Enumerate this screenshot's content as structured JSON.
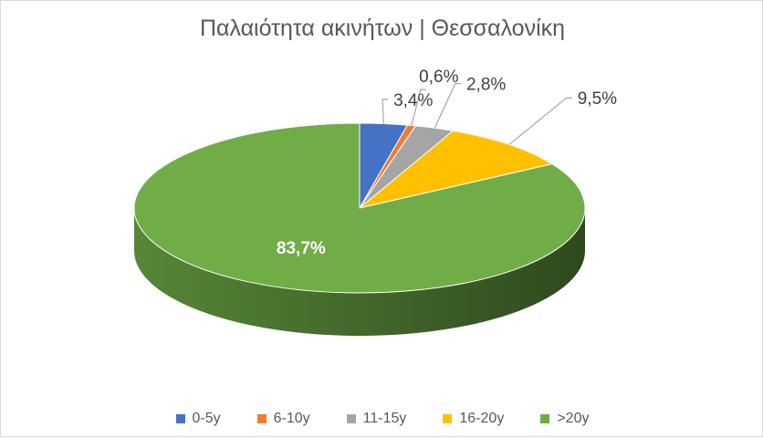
{
  "chart_data": {
    "type": "pie",
    "title": "Παλαιότητα ακινήτων | Θεσσαλονίκη",
    "categories": [
      "0-5y",
      "6-10y",
      "11-15y",
      "16-20y",
      ">20y"
    ],
    "values": [
      3.4,
      0.6,
      2.8,
      9.5,
      83.7
    ],
    "data_labels": [
      "3,4%",
      "0,6%",
      "2,8%",
      "9,5%",
      "83,7%"
    ],
    "colors": [
      "#4472C4",
      "#ED7D31",
      "#A5A5A5",
      "#FFC000",
      "#70AD47"
    ],
    "style": "3d",
    "legend": "bottom"
  }
}
